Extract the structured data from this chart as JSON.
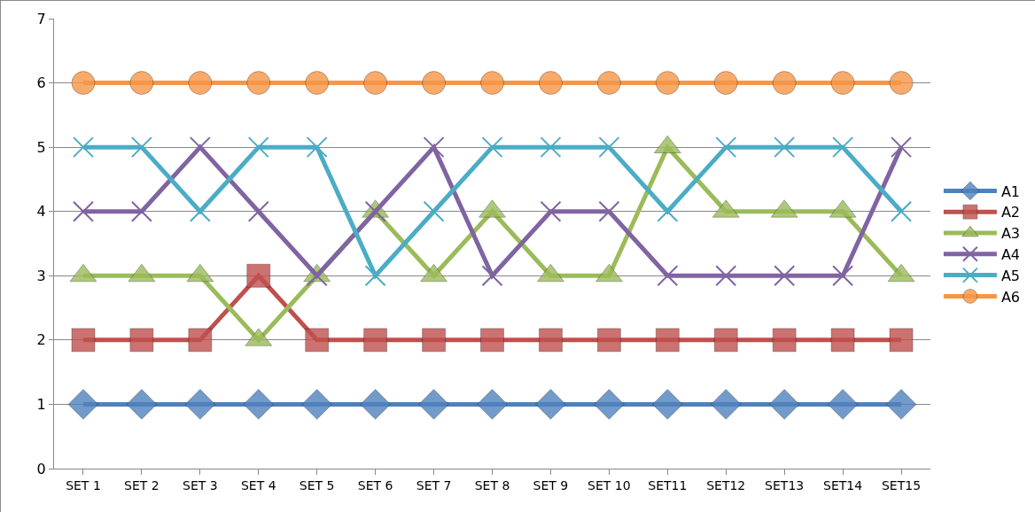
{
  "chart_data": {
    "type": "line",
    "categories": [
      "SET 1",
      "SET 2",
      "SET 3",
      "SET 4",
      "SET 5",
      "SET 6",
      "SET 7",
      "SET 8",
      "SET 9",
      "SET 10",
      "SET11",
      "SET12",
      "SET13",
      "SET14",
      "SET15"
    ],
    "series": [
      {
        "name": "A1",
        "color": "#4f81bd",
        "marker": "diamond",
        "values": [
          1,
          1,
          1,
          1,
          1,
          1,
          1,
          1,
          1,
          1,
          1,
          1,
          1,
          1,
          1
        ]
      },
      {
        "name": "A2",
        "color": "#c0504d",
        "marker": "square",
        "values": [
          2,
          2,
          2,
          3,
          2,
          2,
          2,
          2,
          2,
          2,
          2,
          2,
          2,
          2,
          2
        ]
      },
      {
        "name": "A3",
        "color": "#9bbb59",
        "marker": "triangle",
        "values": [
          3,
          3,
          3,
          2,
          3,
          4,
          3,
          4,
          3,
          3,
          5,
          4,
          4,
          4,
          3
        ]
      },
      {
        "name": "A4",
        "color": "#8064a2",
        "marker": "cross",
        "values": [
          4,
          4,
          5,
          4,
          3,
          4,
          5,
          3,
          4,
          4,
          3,
          3,
          3,
          3,
          5
        ]
      },
      {
        "name": "A5",
        "color": "#4bacc6",
        "marker": "cross",
        "values": [
          5,
          5,
          4,
          5,
          5,
          3,
          4,
          5,
          5,
          5,
          4,
          5,
          5,
          5,
          4
        ]
      },
      {
        "name": "A6",
        "color": "#f79646",
        "marker": "circle",
        "values": [
          6,
          6,
          6,
          6,
          6,
          6,
          6,
          6,
          6,
          6,
          6,
          6,
          6,
          6,
          6
        ]
      }
    ],
    "ylim": [
      0,
      7
    ],
    "yticks": [
      0,
      1,
      2,
      3,
      4,
      5,
      6,
      7
    ],
    "grid": "y",
    "legend": "right"
  }
}
